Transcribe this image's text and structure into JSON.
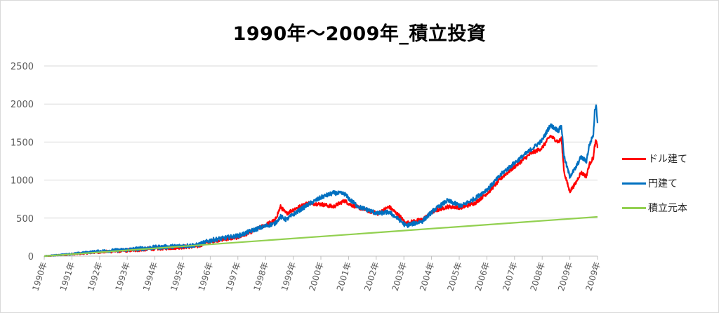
{
  "chart_data": {
    "type": "line",
    "title": "1990年～2009年_積立投資",
    "xlabel": "",
    "ylabel": "",
    "ylim": [
      0,
      2500
    ],
    "yticks": [
      "0",
      "500",
      "1000",
      "1500",
      "2000",
      "2500"
    ],
    "xlim": [
      1990,
      2009.9
    ],
    "xticks": [
      "1990年",
      "1991年",
      "1992年",
      "1993年",
      "1994年",
      "1995年",
      "1996年",
      "1997年",
      "1998年",
      "1999年",
      "2000年",
      "2001年",
      "2002年",
      "2003年",
      "2004年",
      "2005年",
      "2006年",
      "2007年",
      "2008年",
      "2009年",
      "2009年"
    ],
    "grid": "horizontal",
    "legend_position": "right",
    "series": [
      {
        "name": "ドル建て",
        "color": "#ff0000",
        "x": [
          1990,
          1991,
          1992,
          1993,
          1994,
          1995,
          1995.5,
          1996,
          1997,
          1997.5,
          1998,
          1998.3,
          1998.5,
          1998.7,
          1999,
          1999.5,
          2000,
          2000.4,
          2000.8,
          2001,
          2001.3,
          2001.7,
          2002,
          2002.4,
          2002.8,
          2003,
          2003.3,
          2003.6,
          2004,
          2004.5,
          2005,
          2005.5,
          2006,
          2006.5,
          2007,
          2007.5,
          2007.9,
          2008.2,
          2008.5,
          2008.6,
          2008.7,
          2008.9,
          2009.1,
          2009.3,
          2009.5,
          2009.6,
          2009.75,
          2009.8,
          2009.85,
          2009.9
        ],
        "y": [
          0,
          25,
          55,
          75,
          100,
          120,
          130,
          200,
          250,
          330,
          420,
          470,
          650,
          560,
          620,
          700,
          680,
          650,
          730,
          680,
          640,
          590,
          560,
          650,
          520,
          430,
          460,
          480,
          590,
          650,
          640,
          700,
          850,
          1050,
          1200,
          1350,
          1420,
          1580,
          1500,
          1550,
          1100,
          850,
          950,
          1100,
          1050,
          1200,
          1300,
          1450,
          1520,
          1420
        ],
        "noise": 25
      },
      {
        "name": "円建て",
        "color": "#0070c0",
        "x": [
          1990,
          1991,
          1992,
          1993,
          1994,
          1995,
          1995.5,
          1996,
          1997,
          1997.5,
          1998,
          1998.3,
          1998.5,
          1998.7,
          1999,
          1999.5,
          2000,
          2000.4,
          2000.8,
          2001,
          2001.3,
          2001.7,
          2002,
          2002.4,
          2002.8,
          2003,
          2003.3,
          2003.6,
          2004,
          2004.5,
          2005,
          2005.5,
          2006,
          2006.5,
          2007,
          2007.5,
          2007.9,
          2008.2,
          2008.5,
          2008.6,
          2008.7,
          2008.9,
          2009.1,
          2009.3,
          2009.5,
          2009.6,
          2009.75,
          2009.8,
          2009.85,
          2009.9
        ],
        "y": [
          0,
          30,
          65,
          85,
          115,
          135,
          145,
          210,
          270,
          340,
          400,
          430,
          520,
          480,
          560,
          680,
          780,
          830,
          820,
          740,
          650,
          600,
          560,
          580,
          470,
          400,
          430,
          460,
          600,
          730,
          660,
          760,
          900,
          1100,
          1250,
          1400,
          1520,
          1720,
          1650,
          1720,
          1300,
          1050,
          1150,
          1300,
          1250,
          1450,
          1600,
          1900,
          2000,
          1750
        ],
        "noise": 28
      },
      {
        "name": "積立元本",
        "color": "#92d050",
        "x": [
          1990,
          2009.9
        ],
        "y": [
          0,
          517
        ],
        "noise": 0
      }
    ]
  }
}
